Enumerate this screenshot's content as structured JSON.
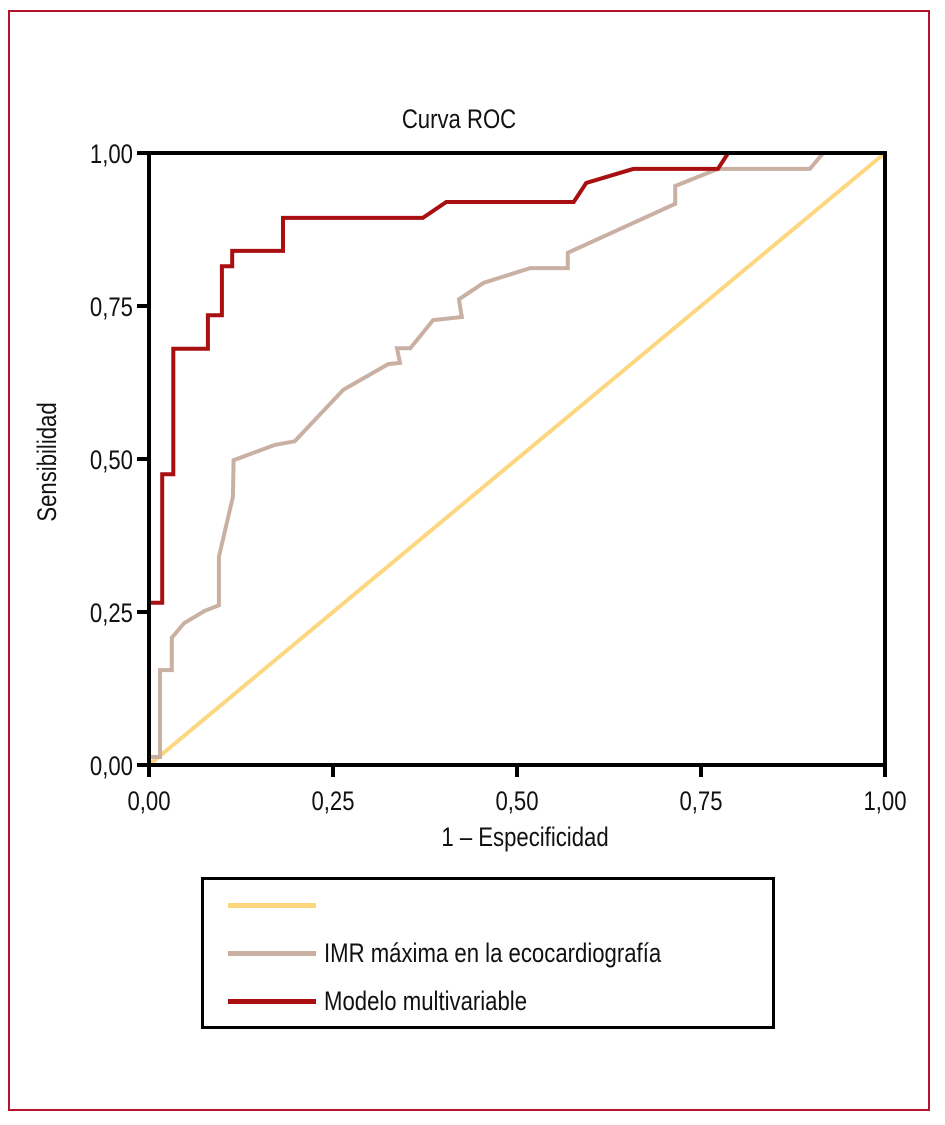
{
  "chart_data": {
    "type": "line",
    "title": "Curva ROC",
    "xlabel": "1 – Especificidad",
    "ylabel": "Sensibilidad",
    "xlim": [
      0,
      1
    ],
    "ylim": [
      0,
      1
    ],
    "x_ticks": [
      "0,00",
      "0,25",
      "0,50",
      "0,75",
      "1,00"
    ],
    "y_ticks": [
      "0,00",
      "0,25",
      "0,50",
      "0,75",
      "1,00"
    ],
    "tick_values": [
      0,
      0.25,
      0.5,
      0.75,
      1
    ],
    "grid": false,
    "legend_placement": "bottom",
    "series": [
      {
        "name": "",
        "role": "reference-line",
        "color": "#fcd77f",
        "points": [
          [
            0,
            0
          ],
          [
            1,
            1
          ]
        ]
      },
      {
        "name": "IMR máxima en la ecocardiografía",
        "color": "#c9b0a3",
        "points": [
          [
            0,
            0.013
          ],
          [
            0.015,
            0.013
          ],
          [
            0.015,
            0.155
          ],
          [
            0.031,
            0.155
          ],
          [
            0.031,
            0.208
          ],
          [
            0.048,
            0.232
          ],
          [
            0.076,
            0.252
          ],
          [
            0.095,
            0.261
          ],
          [
            0.095,
            0.34
          ],
          [
            0.114,
            0.438
          ],
          [
            0.115,
            0.498
          ],
          [
            0.171,
            0.523
          ],
          [
            0.198,
            0.529
          ],
          [
            0.264,
            0.613
          ],
          [
            0.325,
            0.655
          ],
          [
            0.341,
            0.657
          ],
          [
            0.337,
            0.681
          ],
          [
            0.355,
            0.681
          ],
          [
            0.386,
            0.727
          ],
          [
            0.425,
            0.732
          ],
          [
            0.421,
            0.761
          ],
          [
            0.455,
            0.788
          ],
          [
            0.518,
            0.812
          ],
          [
            0.569,
            0.812
          ],
          [
            0.569,
            0.837
          ],
          [
            0.715,
            0.917
          ],
          [
            0.715,
            0.946
          ],
          [
            0.773,
            0.974
          ],
          [
            0.898,
            0.974
          ],
          [
            0.916,
            1.0
          ]
        ]
      },
      {
        "name": "Modelo multivariable",
        "color": "#a80f10",
        "points": [
          [
            0,
            0.265
          ],
          [
            0.018,
            0.265
          ],
          [
            0.018,
            0.475
          ],
          [
            0.033,
            0.475
          ],
          [
            0.033,
            0.68
          ],
          [
            0.08,
            0.68
          ],
          [
            0.08,
            0.735
          ],
          [
            0.099,
            0.735
          ],
          [
            0.099,
            0.815
          ],
          [
            0.113,
            0.815
          ],
          [
            0.113,
            0.84
          ],
          [
            0.182,
            0.84
          ],
          [
            0.182,
            0.894
          ],
          [
            0.372,
            0.894
          ],
          [
            0.404,
            0.92
          ],
          [
            0.577,
            0.92
          ],
          [
            0.594,
            0.951
          ],
          [
            0.658,
            0.974
          ],
          [
            0.773,
            0.974
          ],
          [
            0.787,
            1.0
          ]
        ]
      }
    ]
  },
  "frame_color": "#b0152b"
}
